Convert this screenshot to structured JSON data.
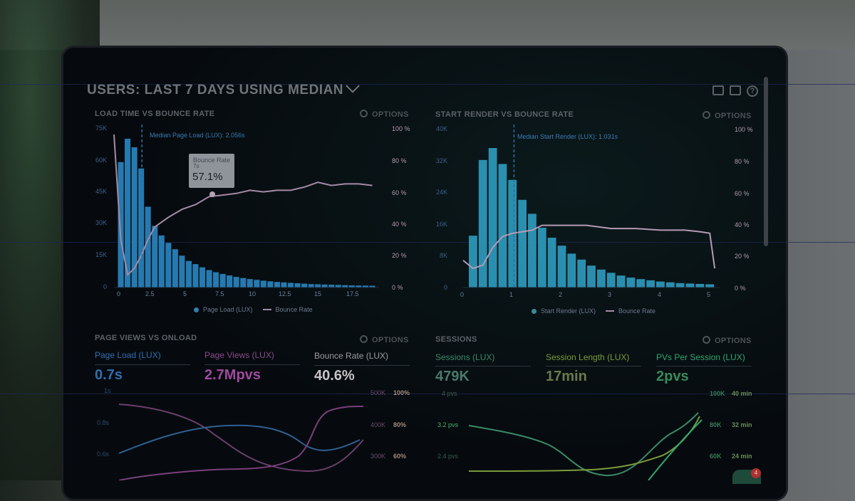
{
  "header": {
    "title": "USERS: LAST 7 DAYS USING MEDIAN",
    "icons": [
      "monitor-icon",
      "external-link-icon",
      "help-icon"
    ],
    "help_glyph": "?"
  },
  "panels": {
    "load_time": {
      "title": "LOAD TIME VS BOUNCE RATE",
      "options": "OPTIONS",
      "y_ticks": [
        "75K",
        "60K",
        "45K",
        "30K",
        "15K",
        "0"
      ],
      "right_ticks": [
        "100 %",
        "80 %",
        "60 %",
        "40 %",
        "20 %",
        "0 %"
      ],
      "x_ticks": [
        "0",
        "2.5",
        "5",
        "7.5",
        "10",
        "12.5",
        "15",
        "17.5"
      ],
      "median_label": "Median Page Load (LUX): 2.056s",
      "tooltip_title": "Bounce Rate",
      "tooltip_sub": "7s",
      "tooltip_value": "57.1%",
      "legend_bar": "Page Load (LUX)",
      "legend_line": "Bounce Rate"
    },
    "start_render": {
      "title": "START RENDER VS BOUNCE RATE",
      "options": "OPTIONS",
      "y_ticks": [
        "40K",
        "32K",
        "24K",
        "16K",
        "8K",
        "0"
      ],
      "right_ticks": [
        "100 %",
        "80 %",
        "60 %",
        "40 %",
        "20 %",
        "0 %"
      ],
      "x_ticks": [
        "0",
        "1",
        "2",
        "3",
        "4",
        "5"
      ],
      "median_label": "Median Start Render (LUX): 1.031s",
      "legend_bar": "Start Render (LUX)",
      "legend_line": "Bounce Rate"
    },
    "page_views": {
      "title": "PAGE VIEWS VS ONLOAD",
      "options": "OPTIONS",
      "metrics": [
        {
          "label": "Page Load (LUX)",
          "value": "0.7s",
          "color": "#2f6fb0"
        },
        {
          "label": "Page Views (LUX)",
          "value": "2.7Mpvs",
          "color": "#a04aa0"
        },
        {
          "label": "Bounce Rate (LUX)",
          "value": "40.6%",
          "color": "#c7c3c7"
        }
      ],
      "left_ticks": [
        "1s",
        "0.8s",
        "0.6s"
      ],
      "mid_ticks": [
        "500K",
        "400K",
        "300K"
      ],
      "right_ticks": [
        "100%",
        "80%",
        "60%"
      ]
    },
    "sessions": {
      "title": "SESSIONS",
      "options": "OPTIONS",
      "metrics": [
        {
          "label": "Sessions (LUX)",
          "value": "479K",
          "color": "#3a8a68"
        },
        {
          "label": "Session Length (LUX)",
          "value": "17min",
          "color": "#7a9a3a"
        },
        {
          "label": "PVs Per Session (LUX)",
          "value": "2pvs",
          "color": "#2fa870"
        }
      ],
      "left_ticks": [
        "4 pvs",
        "3.2 pvs",
        "2.4 pvs"
      ],
      "mid_ticks": [
        "100K",
        "80K",
        "60K"
      ],
      "right_ticks": [
        "40 min",
        "32 min",
        "24 min"
      ]
    }
  },
  "badge": "4",
  "chart_data": [
    {
      "type": "bar",
      "title": "LOAD TIME VS BOUNCE RATE",
      "xlabel": "",
      "ylabel": "",
      "x": [
        0.5,
        1,
        1.5,
        2,
        2.5,
        3,
        3.5,
        4,
        4.5,
        5,
        5.5,
        6,
        6.5,
        7,
        7.5,
        8,
        8.5,
        9,
        9.5,
        10,
        10.5,
        11,
        11.5,
        12,
        12.5,
        13,
        13.5,
        14,
        14.5,
        15,
        15.5,
        16,
        16.5,
        17,
        17.5,
        18,
        18.5,
        19
      ],
      "series": [
        {
          "name": "Page Load (LUX)",
          "values": [
            59000,
            70000,
            66000,
            56000,
            38000,
            29000,
            24500,
            21000,
            18000,
            15000,
            12500,
            11000,
            9500,
            8200,
            7200,
            6400,
            5700,
            5000,
            4500,
            4000,
            3600,
            3200,
            2900,
            2600,
            2400,
            2200,
            2000,
            1800,
            1600,
            1500,
            1400,
            1300,
            1200,
            1100,
            1000,
            950,
            900,
            850
          ]
        },
        {
          "name": "Bounce Rate",
          "x": [
            0,
            0.5,
            1,
            1.5,
            2,
            2.5,
            3,
            4,
            5,
            6,
            7,
            8,
            9,
            10,
            11,
            12,
            13,
            14,
            15,
            16,
            17,
            18,
            19
          ],
          "values": [
            96,
            30,
            8,
            12,
            20,
            30,
            38,
            44,
            49,
            52,
            57,
            58,
            59,
            61,
            60,
            61,
            61,
            63,
            66,
            64,
            65,
            65,
            64
          ]
        }
      ],
      "xlim": [
        0,
        19.5
      ],
      "ylim": [
        0,
        75000
      ],
      "y2lim": [
        0,
        100
      ],
      "annotations": [
        "Median Page Load (LUX): 2.056s",
        "Bounce Rate 7s 57.1%"
      ]
    },
    {
      "type": "bar",
      "title": "START RENDER VS BOUNCE RATE",
      "xlabel": "",
      "ylabel": "",
      "x": [
        0.2,
        0.4,
        0.6,
        0.8,
        1.0,
        1.2,
        1.4,
        1.6,
        1.8,
        2.0,
        2.2,
        2.4,
        2.6,
        2.8,
        3.0,
        3.2,
        3.4,
        3.6,
        3.8,
        4.0,
        4.2,
        4.4,
        4.6,
        4.8,
        5.0
      ],
      "series": [
        {
          "name": "Start Render (LUX)",
          "values": [
            13000,
            32000,
            35000,
            31000,
            27000,
            22000,
            18500,
            15000,
            12500,
            10500,
            8500,
            7000,
            5500,
            4500,
            3700,
            3000,
            2500,
            2100,
            1800,
            1500,
            1300,
            1100,
            1000,
            900,
            800
          ]
        },
        {
          "name": "Bounce Rate",
          "x": [
            0,
            0.2,
            0.4,
            0.6,
            0.8,
            1,
            1.2,
            1.4,
            1.6,
            1.8,
            2,
            2.5,
            3,
            3.5,
            4,
            4.5,
            4.8,
            5,
            5.1
          ],
          "values": [
            17,
            12,
            14,
            25,
            32,
            34,
            35,
            36,
            39,
            39,
            39,
            39,
            37,
            37,
            36,
            36,
            35,
            34,
            12
          ]
        }
      ],
      "xlim": [
        0,
        5.2
      ],
      "ylim": [
        0,
        40000
      ],
      "y2lim": [
        0,
        100
      ],
      "annotations": [
        "Median Start Render (LUX): 1.031s"
      ]
    }
  ]
}
